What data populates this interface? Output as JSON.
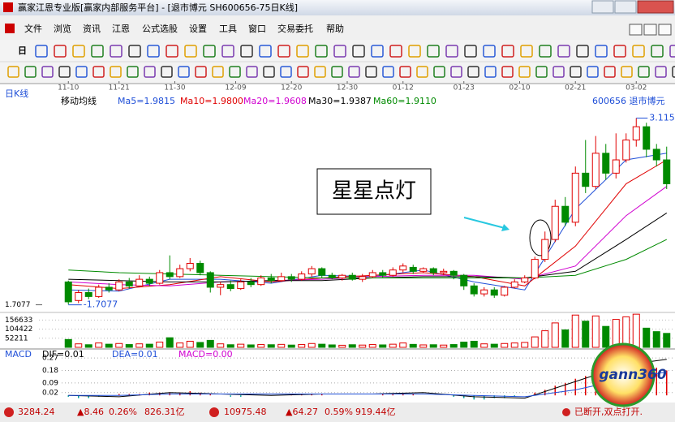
{
  "window": {
    "title": "赢家江恩专业版[赢家内部服务平台] - [退市博元  SH600656-75日K线]",
    "menu": [
      "文件",
      "浏览",
      "资讯",
      "江恩",
      "公式选股",
      "设置",
      "工具",
      "窗口",
      "交易委托",
      "帮助"
    ],
    "toolbar_period": "日"
  },
  "chart_data": {
    "type": "candlestick",
    "panel_label": "日K线",
    "indicator_label": "移动均线",
    "stock": "600656  退市博元",
    "annotation": "星星点灯",
    "date_ticks": [
      {
        "value": 0,
        "label": "11-10"
      },
      {
        "value": 5,
        "label": "11-21"
      },
      {
        "value": 10.5,
        "label": "11-30"
      },
      {
        "value": 16.5,
        "label": "12-09"
      },
      {
        "value": 22,
        "label": "12-20"
      },
      {
        "value": 27.5,
        "label": "12-30"
      },
      {
        "value": 33,
        "label": "01-12"
      },
      {
        "value": 39,
        "label": "01-23"
      },
      {
        "value": 44.5,
        "label": "02-10"
      },
      {
        "value": 50,
        "label": "02-21"
      },
      {
        "value": 56,
        "label": "03-02"
      }
    ],
    "ylim": [
      1.65,
      3.21
    ],
    "yticks": [
      1.7077
    ],
    "low_label": {
      "value": 1.7077,
      "label": "-1.7077"
    },
    "high_label": {
      "value": 3.115,
      "label": "3.115"
    },
    "up_color": "#e00000",
    "down_color": "#008a00",
    "open": [
      1.88,
      1.74,
      1.8,
      1.77,
      1.84,
      1.82,
      1.88,
      1.85,
      1.9,
      1.87,
      1.95,
      1.92,
      1.98,
      2.02,
      1.95,
      1.84,
      1.86,
      1.83,
      1.88,
      1.86,
      1.91,
      1.89,
      1.92,
      1.9,
      1.94,
      1.98,
      1.93,
      1.91,
      1.93,
      1.9,
      1.92,
      1.95,
      1.93,
      1.97,
      1.99,
      1.96,
      1.98,
      1.95,
      1.96,
      1.93,
      1.85,
      1.79,
      1.82,
      1.78,
      1.84,
      1.88,
      1.91,
      2.05,
      2.2,
      2.45,
      2.33,
      2.7,
      2.6,
      2.85,
      2.7,
      2.8,
      2.95,
      3.05,
      2.88,
      2.8
    ],
    "high": [
      1.89,
      1.82,
      1.83,
      1.86,
      1.87,
      1.9,
      1.91,
      1.93,
      1.92,
      1.97,
      2.08,
      2.01,
      2.06,
      2.04,
      1.96,
      1.88,
      1.89,
      1.9,
      1.91,
      1.93,
      1.94,
      1.95,
      1.94,
      1.96,
      2.0,
      1.99,
      1.95,
      1.94,
      1.95,
      1.94,
      1.97,
      1.97,
      1.99,
      2.02,
      2.01,
      1.99,
      1.99,
      1.98,
      1.97,
      1.94,
      1.87,
      1.84,
      1.84,
      1.85,
      1.9,
      1.93,
      2.07,
      2.26,
      2.5,
      2.52,
      2.75,
      2.95,
      2.98,
      2.92,
      3.0,
      3.0,
      3.115,
      3.08,
      2.92,
      2.9
    ],
    "low": [
      1.71,
      1.72,
      1.75,
      1.76,
      1.8,
      1.81,
      1.83,
      1.84,
      1.85,
      1.86,
      1.9,
      1.91,
      1.96,
      1.93,
      1.8,
      1.78,
      1.81,
      1.82,
      1.84,
      1.85,
      1.87,
      1.88,
      1.88,
      1.89,
      1.92,
      1.91,
      1.9,
      1.89,
      1.89,
      1.88,
      1.91,
      1.91,
      1.92,
      1.95,
      1.94,
      1.95,
      1.93,
      1.93,
      1.9,
      1.82,
      1.77,
      1.77,
      1.76,
      1.77,
      1.83,
      1.87,
      1.9,
      2.03,
      2.18,
      2.3,
      2.3,
      2.55,
      2.58,
      2.65,
      2.66,
      2.78,
      2.9,
      2.82,
      2.75,
      2.58
    ],
    "close": [
      1.73,
      1.8,
      1.77,
      1.84,
      1.82,
      1.88,
      1.85,
      1.9,
      1.87,
      1.95,
      1.92,
      1.98,
      2.02,
      1.95,
      1.84,
      1.86,
      1.83,
      1.88,
      1.86,
      1.91,
      1.89,
      1.92,
      1.9,
      1.94,
      1.98,
      1.93,
      1.91,
      1.93,
      1.9,
      1.92,
      1.95,
      1.93,
      1.97,
      2.0,
      1.96,
      1.98,
      1.95,
      1.96,
      1.93,
      1.85,
      1.79,
      1.82,
      1.78,
      1.84,
      1.88,
      1.91,
      2.05,
      2.2,
      2.45,
      2.33,
      2.7,
      2.6,
      2.85,
      2.7,
      2.8,
      2.95,
      3.05,
      2.88,
      2.8,
      2.62
    ],
    "ma_x": [
      0,
      5,
      10,
      15,
      20,
      25,
      30,
      35,
      40,
      45,
      50,
      55,
      59
    ],
    "ma_series": [
      {
        "name": "Ma5=1.9815",
        "color": "#1f4fd8",
        "values": [
          1.82,
          1.81,
          1.9,
          1.9,
          1.87,
          1.93,
          1.92,
          1.97,
          1.88,
          1.82,
          2.43,
          2.8,
          2.85
        ]
      },
      {
        "name": "Ma10=1.9800",
        "color": "#e00000",
        "values": [
          1.86,
          1.83,
          1.86,
          1.92,
          1.88,
          1.91,
          1.93,
          1.95,
          1.92,
          1.85,
          2.15,
          2.62,
          2.8
        ]
      },
      {
        "name": "Ma20=1.9608",
        "color": "#d000d0",
        "values": [
          1.88,
          1.86,
          1.85,
          1.88,
          1.89,
          1.9,
          1.92,
          1.93,
          1.93,
          1.9,
          2.0,
          2.38,
          2.6
        ]
      },
      {
        "name": "Ma30=1.9387",
        "color": "#000000",
        "values": [
          1.9,
          1.89,
          1.88,
          1.88,
          1.89,
          1.89,
          1.91,
          1.92,
          1.92,
          1.91,
          1.96,
          2.2,
          2.4
        ]
      },
      {
        "name": "Ma60=1.9110",
        "color": "#008a00",
        "values": [
          1.97,
          1.95,
          1.94,
          1.93,
          1.92,
          1.91,
          1.91,
          1.91,
          1.91,
          1.91,
          1.93,
          2.05,
          2.2
        ]
      }
    ],
    "volume": {
      "ylim": [
        0,
        200000
      ],
      "yticks": [
        156633,
        104422,
        52211
      ],
      "values": [
        45000,
        20000,
        15000,
        25000,
        18000,
        22000,
        16000,
        20000,
        18000,
        30000,
        55000,
        25000,
        35000,
        28000,
        40000,
        20000,
        15000,
        18000,
        14000,
        16000,
        15000,
        17000,
        13000,
        16000,
        22000,
        18000,
        14000,
        12000,
        15000,
        13000,
        16000,
        14000,
        18000,
        25000,
        17000,
        14000,
        15000,
        13000,
        16000,
        30000,
        35000,
        20000,
        18000,
        22000,
        25000,
        28000,
        60000,
        95000,
        140000,
        100000,
        185000,
        150000,
        180000,
        120000,
        160000,
        175000,
        190000,
        110000,
        90000,
        80000
      ]
    },
    "macd": {
      "title": "MACD",
      "ylim": [
        -0.04,
        0.3
      ],
      "yticks": [
        0.27,
        0.18,
        0.09,
        0.02
      ],
      "legend": [
        {
          "name": "DIF=0.01",
          "color": "#000000"
        },
        {
          "name": "DEA=0.01",
          "color": "#1f4fd8"
        },
        {
          "name": "MACD=0.00",
          "color": "#d000d0"
        }
      ],
      "values": [
        -0.01,
        -0.02,
        -0.02,
        -0.01,
        0,
        0.01,
        0.01,
        0.01,
        0.02,
        0.02,
        0.02,
        0.02,
        0.03,
        0.02,
        0.01,
        0,
        -0.01,
        -0.01,
        0,
        0,
        0,
        0,
        0.01,
        0.01,
        0.01,
        0.01,
        0,
        0,
        0,
        0,
        0,
        0.01,
        0.01,
        0.01,
        0.01,
        0,
        0,
        0,
        -0.01,
        -0.02,
        -0.03,
        -0.03,
        -0.02,
        -0.02,
        -0.01,
        0,
        0.02,
        0.04,
        0.07,
        0.09,
        0.12,
        0.14,
        0.16,
        0.17,
        0.19,
        0.21,
        0.22,
        0.21,
        0.2,
        0.18
      ],
      "dif": [
        0.0,
        -0.01,
        0.02,
        0.01,
        0.0,
        0.01,
        0.01,
        0.02,
        -0.01,
        -0.02,
        0.1,
        0.22,
        0.26
      ],
      "dea": [
        0.0,
        0.0,
        0.01,
        0.01,
        0.01,
        0.01,
        0.01,
        0.01,
        0.0,
        -0.01,
        0.04,
        0.12,
        0.17
      ]
    }
  },
  "status": {
    "sh": [
      "3284.24",
      "▲8.46",
      "0.26%",
      "826.31亿"
    ],
    "sz": [
      "10975.48",
      "▲64.27",
      "0.59%",
      "919.44亿"
    ],
    "connection": "已断开,双点打开."
  },
  "logo": "gann360"
}
